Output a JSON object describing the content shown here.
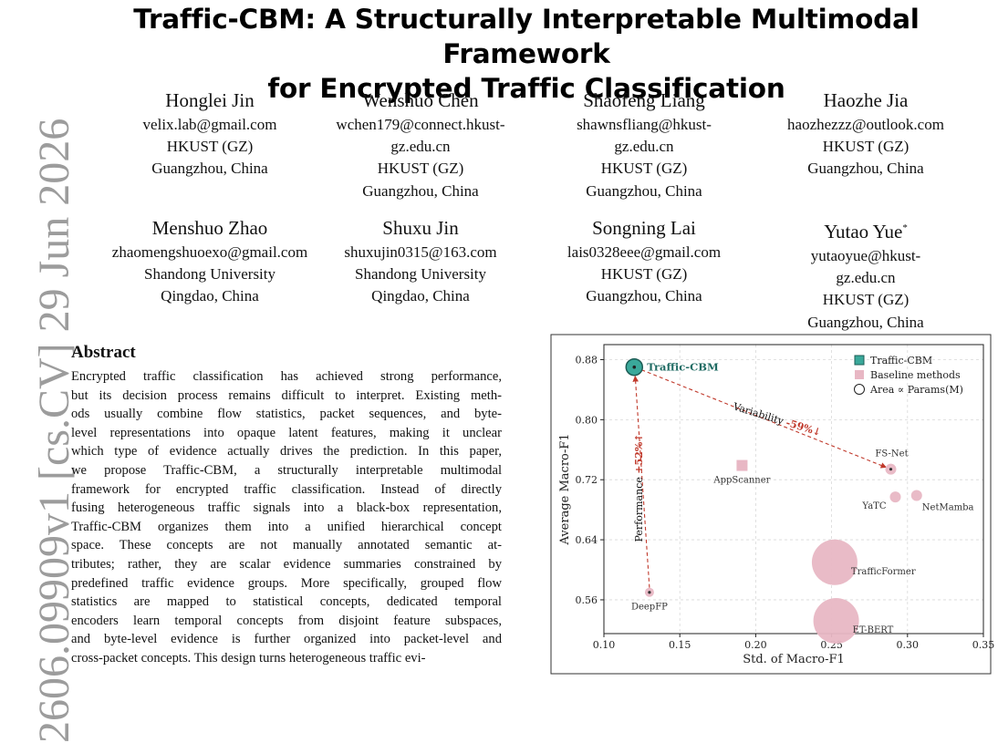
{
  "paper": {
    "title_line1": "Traffic-CBM: A Structurally Interpretable Multimodal Framework",
    "title_line2": "for Encrypted Traffic Classification",
    "arxiv_id": "2606.09909v1  [cs.CV]  29 Jun 2026",
    "authors": [
      {
        "name": "Honglei Jin",
        "lines": [
          "velix.lab@gmail.com",
          "HKUST (GZ)",
          "Guangzhou, China"
        ]
      },
      {
        "name": "Wenshuo Chen",
        "lines": [
          "wchen179@connect.hkust-",
          "gz.edu.cn",
          "HKUST (GZ)",
          "Guangzhou, China"
        ]
      },
      {
        "name": "Shaofeng Liang",
        "lines": [
          "shawnsfliang@hkust-",
          "gz.edu.cn",
          "HKUST (GZ)",
          "Guangzhou, China"
        ]
      },
      {
        "name": "Haozhe Jia",
        "lines": [
          "haozhezzz@outlook.com",
          "HKUST (GZ)",
          "Guangzhou, China"
        ]
      },
      {
        "name": "Menshuo Zhao",
        "lines": [
          "zhaomengshuoexo@gmail.com",
          "Shandong University",
          "Qingdao, China"
        ]
      },
      {
        "name": "Shuxu Jin",
        "lines": [
          "shuxujin0315@163.com",
          "Shandong University",
          "Qingdao, China"
        ]
      },
      {
        "name": "Songning Lai",
        "lines": [
          "lais0328eee@gmail.com",
          "HKUST (GZ)",
          "Guangzhou, China"
        ]
      },
      {
        "name": "Yutao Yue",
        "mark": "*",
        "lines": [
          "yutaoyue@hkust-",
          "gz.edu.cn",
          "HKUST (GZ)",
          "Guangzhou, China"
        ]
      }
    ],
    "abstract_heading": "Abstract",
    "abstract_lines": [
      "Encrypted traffic classification has achieved strong performance,",
      "but its decision process remains difficult to interpret. Existing meth-",
      "ods usually combine flow statistics, packet sequences, and byte-",
      "level representations into opaque latent features, making it unclear",
      "which type of evidence actually drives the prediction. In this paper,",
      "we propose Traffic-CBM, a structurally interpretable multimodal",
      "framework for encrypted traffic classification. Instead of directly",
      "fusing heterogeneous traffic signals into a black-box representation,",
      "Traffic-CBM organizes them into a unified hierarchical concept",
      "space. These concepts are not manually annotated semantic at-",
      "tributes; rather, they are scalar evidence summaries constrained by",
      "predefined traffic evidence groups. More specifically, grouped flow",
      "statistics are mapped to statistical concepts, dedicated temporal",
      "encoders learn temporal concepts from disjoint feature subspaces,",
      "and byte-level evidence is further organized into packet-level and",
      "cross-packet concepts. This design turns heterogeneous traffic evi-"
    ]
  },
  "chart_data": {
    "type": "scatter",
    "xlabel": "Std. of Macro-F1",
    "ylabel": "Average Macro-F1",
    "xlim": [
      0.1,
      0.35
    ],
    "ylim": [
      0.515,
      0.9
    ],
    "xticks": [
      "0.10",
      "0.15",
      "0.20",
      "0.25",
      "0.30",
      "0.35"
    ],
    "yticks": [
      "0.56",
      "0.64",
      "0.72",
      "0.80",
      "0.88"
    ],
    "ytick_values": [
      0.56,
      0.64,
      0.72,
      0.8,
      0.88
    ],
    "grid": true,
    "legend_position": "top-right",
    "legend": [
      "Traffic-CBM",
      "Baseline methods",
      "Area ∝ Params(M)"
    ],
    "colors": {
      "ours": "#3aa89a",
      "ours_label": "#1f6b63",
      "baseline": "#e8b7c4",
      "arrow": "#c0392b"
    },
    "points": [
      {
        "label": "Traffic-CBM",
        "x": 0.12,
        "y": 0.87,
        "group": "ours",
        "r": 9
      },
      {
        "label": "AppScanner",
        "x": 0.191,
        "y": 0.739,
        "group": "baseline",
        "shape": "square"
      },
      {
        "label": "FS-Net",
        "x": 0.289,
        "y": 0.734,
        "group": "baseline",
        "r": 6
      },
      {
        "label": "YaTC",
        "x": 0.292,
        "y": 0.697,
        "group": "baseline",
        "r": 6
      },
      {
        "label": "NetMamba",
        "x": 0.306,
        "y": 0.699,
        "group": "baseline",
        "r": 6
      },
      {
        "label": "TrafficFormer",
        "x": 0.252,
        "y": 0.61,
        "group": "baseline",
        "r": 25
      },
      {
        "label": "ET-BERT",
        "x": 0.253,
        "y": 0.532,
        "group": "baseline",
        "r": 25
      },
      {
        "label": "DeepFP",
        "x": 0.13,
        "y": 0.57,
        "group": "baseline",
        "r": 5
      }
    ],
    "annotations": [
      {
        "text_main": "Variability ",
        "text_pct": "-59%↓",
        "from": "Traffic-CBM",
        "to": "FS-Net"
      },
      {
        "text_main": "Performance ",
        "text_pct": "+52%↑",
        "from": "DeepFP",
        "to": "Traffic-CBM"
      }
    ]
  }
}
